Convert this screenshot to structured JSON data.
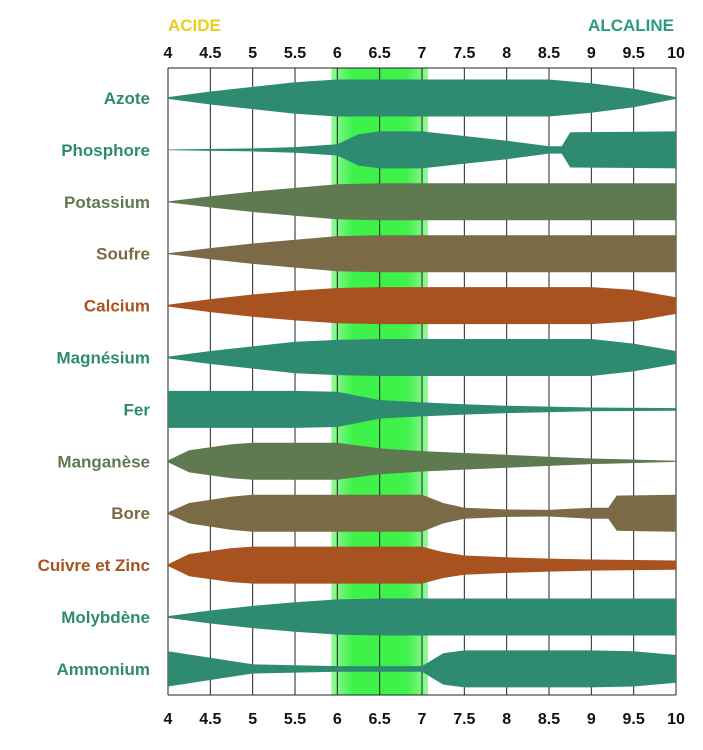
{
  "chart_data": {
    "type": "area",
    "header": {
      "acid_label": "ACIDE",
      "alkaline_label": "ALCALINE"
    },
    "colors": {
      "acid": "#e8cf1c",
      "alkaline": "#2b9c80",
      "optimal_band": "#3ff24a",
      "grid": "#222222",
      "green": "#2e8b72",
      "olive": "#5f7a50",
      "brown": "#7a6a45",
      "rust": "#a85220"
    },
    "x_ticks": [
      "4",
      "4.5",
      "5",
      "5.5",
      "6",
      "6.5",
      "7",
      "7.5",
      "8",
      "8.5",
      "9",
      "9.5",
      "10"
    ],
    "xlim": [
      4,
      10
    ],
    "optimal_range": [
      6,
      7
    ],
    "series": [
      {
        "name": "Azote",
        "color": "green",
        "profile": [
          [
            4,
            0.05
          ],
          [
            4.5,
            0.35
          ],
          [
            5,
            0.6
          ],
          [
            5.5,
            0.85
          ],
          [
            6,
            1
          ],
          [
            8.5,
            1
          ],
          [
            9,
            0.8
          ],
          [
            9.5,
            0.5
          ],
          [
            10,
            0.05
          ]
        ]
      },
      {
        "name": "Phosphore",
        "color": "green",
        "profile": [
          [
            4,
            0.02
          ],
          [
            5,
            0.08
          ],
          [
            5.5,
            0.15
          ],
          [
            6,
            0.3
          ],
          [
            6.25,
            0.85
          ],
          [
            6.5,
            1
          ],
          [
            7,
            1
          ],
          [
            7.5,
            0.75
          ],
          [
            8,
            0.5
          ],
          [
            8.5,
            0.2
          ],
          [
            8.65,
            0.2
          ],
          [
            8.75,
            0.95
          ],
          [
            10,
            1
          ]
        ]
      },
      {
        "name": "Potassium",
        "color": "olive",
        "profile": [
          [
            4,
            0.02
          ],
          [
            4.5,
            0.3
          ],
          [
            5,
            0.55
          ],
          [
            5.5,
            0.75
          ],
          [
            6,
            0.95
          ],
          [
            6.5,
            1
          ],
          [
            10,
            1
          ]
        ]
      },
      {
        "name": "Soufre",
        "color": "brown",
        "profile": [
          [
            4,
            0.02
          ],
          [
            4.5,
            0.3
          ],
          [
            5,
            0.55
          ],
          [
            5.5,
            0.75
          ],
          [
            6,
            0.95
          ],
          [
            6.5,
            1
          ],
          [
            10,
            1
          ]
        ]
      },
      {
        "name": "Calcium",
        "color": "rust",
        "profile": [
          [
            4,
            0.05
          ],
          [
            4.5,
            0.35
          ],
          [
            5,
            0.6
          ],
          [
            5.5,
            0.8
          ],
          [
            6,
            0.95
          ],
          [
            6.5,
            1
          ],
          [
            9,
            1
          ],
          [
            9.5,
            0.85
          ],
          [
            10,
            0.45
          ]
        ]
      },
      {
        "name": "Magnésium",
        "color": "green",
        "profile": [
          [
            4,
            0.05
          ],
          [
            4.5,
            0.35
          ],
          [
            5,
            0.6
          ],
          [
            5.5,
            0.85
          ],
          [
            6,
            0.95
          ],
          [
            6.5,
            1
          ],
          [
            9,
            1
          ],
          [
            9.5,
            0.75
          ],
          [
            10,
            0.35
          ]
        ]
      },
      {
        "name": "Fer",
        "color": "green",
        "profile": [
          [
            4,
            1
          ],
          [
            5.5,
            1
          ],
          [
            6,
            0.95
          ],
          [
            6.5,
            0.5
          ],
          [
            7,
            0.38
          ],
          [
            7.5,
            0.28
          ],
          [
            8,
            0.2
          ],
          [
            9,
            0.1
          ],
          [
            10,
            0.07
          ]
        ]
      },
      {
        "name": "Manganèse",
        "color": "olive",
        "profile": [
          [
            4,
            0.05
          ],
          [
            4.25,
            0.6
          ],
          [
            4.75,
            0.92
          ],
          [
            5,
            1
          ],
          [
            6,
            1
          ],
          [
            6.5,
            0.7
          ],
          [
            7,
            0.55
          ],
          [
            7.5,
            0.45
          ],
          [
            8,
            0.35
          ],
          [
            8.5,
            0.25
          ],
          [
            9,
            0.15
          ],
          [
            10,
            0.03
          ]
        ]
      },
      {
        "name": "Bore",
        "color": "brown",
        "profile": [
          [
            4,
            0.05
          ],
          [
            4.25,
            0.55
          ],
          [
            4.75,
            0.9
          ],
          [
            5,
            1
          ],
          [
            7,
            1
          ],
          [
            7.25,
            0.55
          ],
          [
            7.5,
            0.3
          ],
          [
            8,
            0.2
          ],
          [
            8.5,
            0.18
          ],
          [
            9,
            0.3
          ],
          [
            9.2,
            0.3
          ],
          [
            9.3,
            0.95
          ],
          [
            10,
            1
          ]
        ]
      },
      {
        "name": "Cuivre et Zinc",
        "color": "rust",
        "profile": [
          [
            4,
            0.05
          ],
          [
            4.25,
            0.6
          ],
          [
            4.75,
            0.92
          ],
          [
            5,
            1
          ],
          [
            7,
            1
          ],
          [
            7.25,
            0.7
          ],
          [
            7.5,
            0.52
          ],
          [
            8,
            0.42
          ],
          [
            8.5,
            0.35
          ],
          [
            9,
            0.3
          ],
          [
            10,
            0.25
          ]
        ]
      },
      {
        "name": "Molybdène",
        "color": "green",
        "profile": [
          [
            4,
            0.05
          ],
          [
            4.5,
            0.35
          ],
          [
            5,
            0.6
          ],
          [
            5.5,
            0.8
          ],
          [
            6,
            0.95
          ],
          [
            6.5,
            1
          ],
          [
            10,
            1
          ]
        ]
      },
      {
        "name": "Ammonium",
        "color": "green",
        "profile": [
          [
            4,
            0.95
          ],
          [
            4.5,
            0.6
          ],
          [
            5,
            0.25
          ],
          [
            6,
            0.15
          ],
          [
            7,
            0.15
          ],
          [
            7.25,
            0.85
          ],
          [
            7.5,
            1
          ],
          [
            9,
            1
          ],
          [
            9.5,
            0.95
          ],
          [
            10,
            0.75
          ]
        ]
      }
    ]
  }
}
